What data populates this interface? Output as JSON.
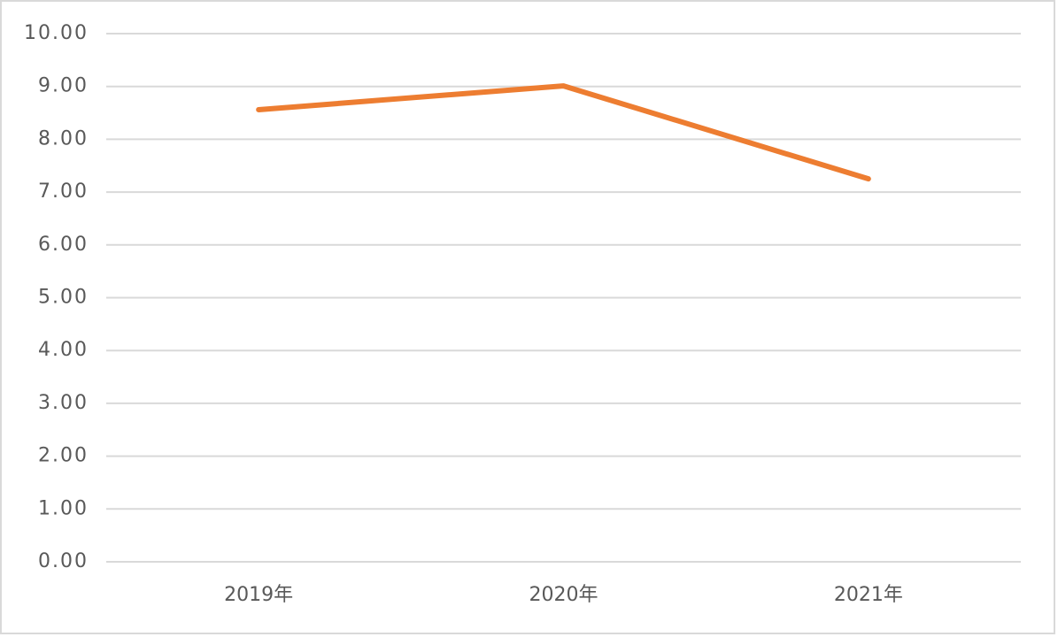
{
  "chart_data": {
    "type": "line",
    "categories": [
      "2019年",
      "2020年",
      "2021年"
    ],
    "series": [
      {
        "color": "#ed7d31",
        "values": [
          8.56,
          9.01,
          7.25
        ]
      }
    ],
    "ylim": [
      0,
      10
    ],
    "yticks": [
      {
        "value": 0,
        "label": "0.00"
      },
      {
        "value": 1,
        "label": "1.00"
      },
      {
        "value": 2,
        "label": "2.00"
      },
      {
        "value": 3,
        "label": "3.00"
      },
      {
        "value": 4,
        "label": "4.00"
      },
      {
        "value": 5,
        "label": "5.00"
      },
      {
        "value": 6,
        "label": "6.00"
      },
      {
        "value": 7,
        "label": "7.00"
      },
      {
        "value": 8,
        "label": "8.00"
      },
      {
        "value": 9,
        "label": "9.00"
      },
      {
        "value": 10,
        "label": "10.00"
      }
    ],
    "grid": true
  }
}
